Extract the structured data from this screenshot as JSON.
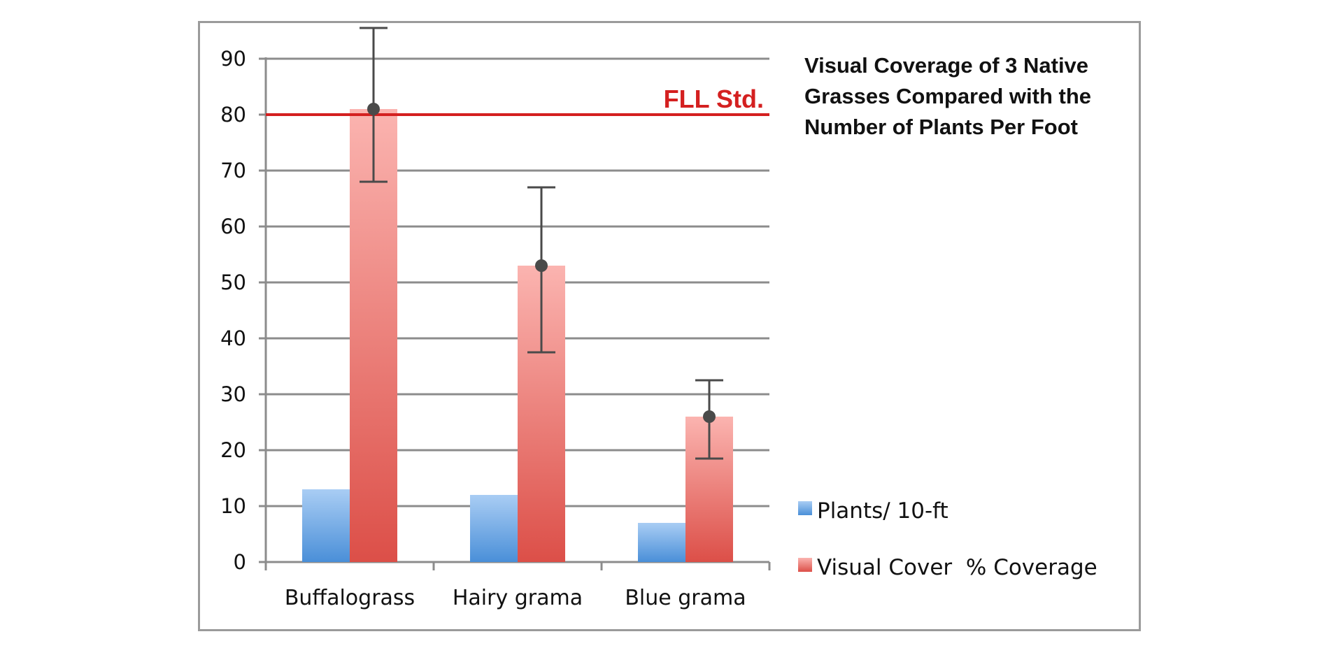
{
  "chart_data": {
    "type": "bar",
    "title_lines": [
      "Visual Coverage of 3 Native",
      "Grasses Compared with the",
      "Number of Plants Per Foot"
    ],
    "categories": [
      "Buffalograss",
      "Hairy grama",
      "Blue grama"
    ],
    "series": [
      {
        "name": "Plants/ 10-ft",
        "values": [
          13,
          12,
          7
        ],
        "color": "#5b9bd5"
      },
      {
        "name": "Visual Cover  % Coverage",
        "values": [
          81,
          53,
          26
        ],
        "error_low": [
          68,
          37.5,
          18.5
        ],
        "error_high": [
          95.5,
          67,
          32.5
        ],
        "color": "#e0524c"
      }
    ],
    "reference_line": {
      "value": 80,
      "label": "FLL Std.",
      "color": "#d42020"
    },
    "ylim": [
      0,
      90
    ],
    "yticks": [
      0,
      10,
      20,
      30,
      40,
      50,
      60,
      70,
      80,
      90
    ],
    "xlabel": "",
    "ylabel": "",
    "grid": true,
    "legend_position": "right-bottom"
  }
}
